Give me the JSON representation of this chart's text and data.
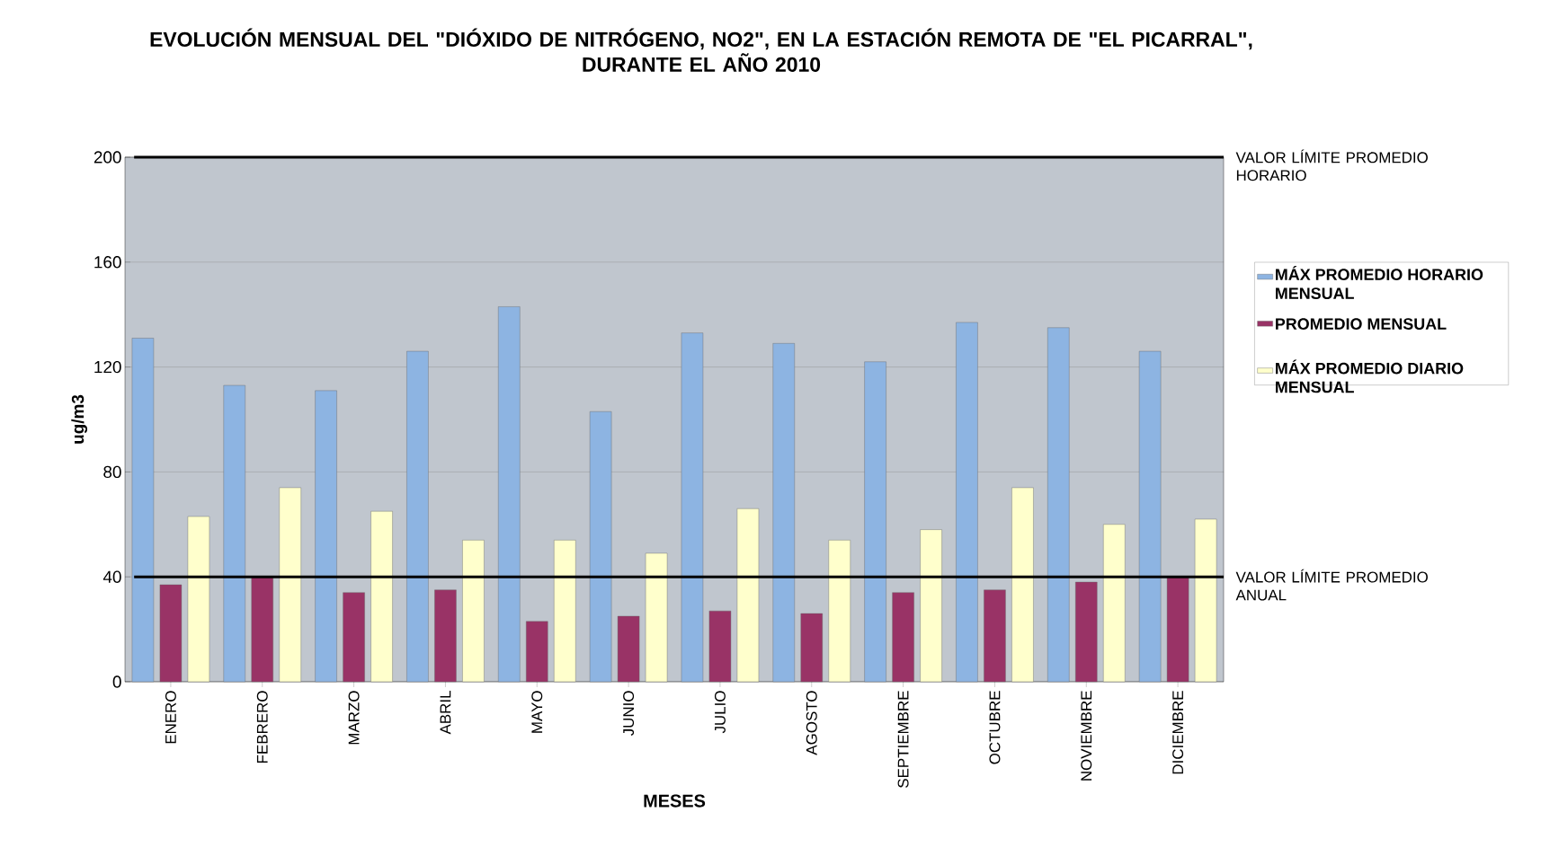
{
  "chart_data": {
    "type": "bar",
    "title": "EVOLUCIÓN MENSUAL DEL \"DIÓXIDO DE NITRÓGENO, NO2\", EN LA ESTACIÓN REMOTA DE \"EL PICARRAL\", DURANTE EL AÑO 2010",
    "xlabel": "MESES",
    "ylabel": "ug/m3",
    "categories": [
      "ENERO",
      "FEBRERO",
      "MARZO",
      "ABRIL",
      "MAYO",
      "JUNIO",
      "JULIO",
      "AGOSTO",
      "SEPTIEMBRE",
      "OCTUBRE",
      "NOVIEMBRE",
      "DICIEMBRE"
    ],
    "series": [
      {
        "name": "MÁX PROMEDIO HORARIO MENSUAL",
        "color": "#8db4e2",
        "values": [
          131,
          113,
          111,
          126,
          143,
          103,
          133,
          129,
          122,
          137,
          135,
          126
        ]
      },
      {
        "name": "PROMEDIO  MENSUAL",
        "color": "#993366",
        "values": [
          37,
          40,
          34,
          35,
          23,
          25,
          27,
          26,
          34,
          35,
          38,
          40
        ]
      },
      {
        "name": "MÁX PROMEDIO DIARIO MENSUAL",
        "color": "#ffffcc",
        "values": [
          63,
          74,
          65,
          54,
          54,
          49,
          66,
          54,
          58,
          74,
          60,
          62
        ]
      }
    ],
    "ylim": [
      0,
      200
    ],
    "yticks": [
      0,
      40,
      80,
      120,
      160,
      200
    ],
    "grid": "y",
    "legend": "right",
    "ref_lines": [
      {
        "axis": "y",
        "value": 200,
        "label": "VALOR LÍMITE PROMEDIO HORARIO",
        "color": "#000000"
      },
      {
        "axis": "y",
        "value": 40,
        "label": "VALOR LÍMITE PROMEDIO ANUAL",
        "color": "#000000"
      }
    ]
  }
}
